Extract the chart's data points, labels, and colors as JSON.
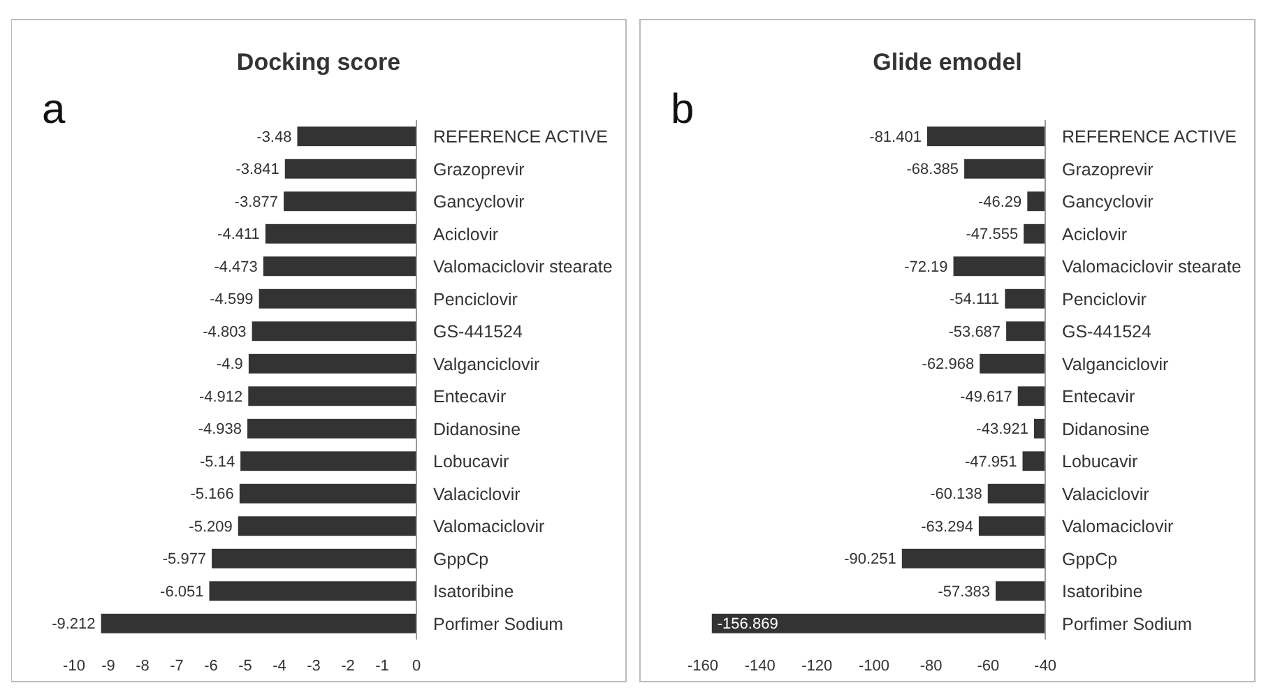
{
  "chart_data": [
    {
      "type": "bar",
      "orientation": "horizontal",
      "title": "Docking score",
      "annotations": [
        "a"
      ],
      "categories": [
        "REFERENCE ACTIVE",
        "Grazoprevir",
        "Gancyclovir",
        "Aciclovir",
        "Valomaciclovir stearate",
        "Penciclovir",
        "GS-441524",
        "Valganciclovir",
        "Entecavir",
        "Didanosine",
        "Lobucavir",
        "Valaciclovir",
        "Valomaciclovir",
        "GppCp",
        "Isatoribine",
        "Porfimer Sodium"
      ],
      "values": [
        -3.48,
        -3.841,
        -3.877,
        -4.411,
        -4.473,
        -4.599,
        -4.803,
        -4.9,
        -4.912,
        -4.938,
        -5.14,
        -5.166,
        -5.209,
        -5.977,
        -6.051,
        -9.212
      ],
      "color": "#333333",
      "xlim": [
        -10,
        0
      ],
      "xticks": [
        -10,
        -9,
        -8,
        -7,
        -6,
        -5,
        -4,
        -3,
        -2,
        -1,
        0
      ],
      "data_labels": true
    },
    {
      "type": "bar",
      "orientation": "horizontal",
      "title": "Glide emodel",
      "annotations": [
        "b"
      ],
      "categories": [
        "REFERENCE ACTIVE",
        "Grazoprevir",
        "Gancyclovir",
        "Aciclovir",
        "Valomaciclovir stearate",
        "Penciclovir",
        "GS-441524",
        "Valganciclovir",
        "Entecavir",
        "Didanosine",
        "Lobucavir",
        "Valaciclovir",
        "Valomaciclovir",
        "GppCp",
        "Isatoribine",
        "Porfimer Sodium"
      ],
      "values": [
        -81.401,
        -68.385,
        -46.29,
        -47.555,
        -72.19,
        -54.111,
        -53.687,
        -62.968,
        -49.617,
        -43.921,
        -47.951,
        -60.138,
        -63.294,
        -90.251,
        -57.383,
        -156.869
      ],
      "color": "#333333",
      "xlim": [
        -160,
        -40
      ],
      "xticks": [
        -160,
        -140,
        -120,
        -100,
        -80,
        -60,
        -40
      ],
      "data_labels": true
    }
  ]
}
